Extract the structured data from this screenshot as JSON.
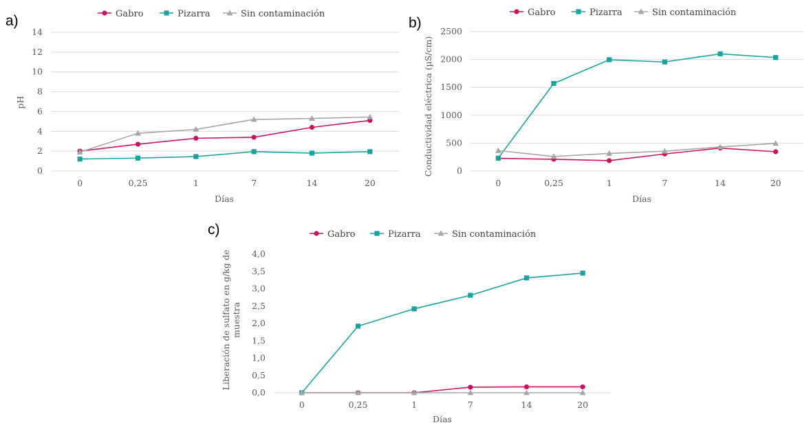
{
  "colors": {
    "gabro": "#C8125F",
    "pizarra": "#17A3A0",
    "sin": "#A6A6A6",
    "grid": "#D9D9D9",
    "text": "#595959"
  },
  "chart_data": [
    {
      "id": "a",
      "panel_label": "a)",
      "type": "line",
      "xlabel": "Días",
      "ylabel": "pH",
      "categories": [
        "0",
        "0,25",
        "1",
        "7",
        "14",
        "20"
      ],
      "ylim": [
        0,
        14
      ],
      "ystep": 2,
      "ydecimals": 0,
      "grid": true,
      "legend": "top",
      "series": [
        {
          "name": "Gabro",
          "key": "gabro",
          "marker": "circle",
          "values": [
            2.0,
            2.7,
            3.3,
            3.4,
            4.4,
            5.1
          ]
        },
        {
          "name": "Pizarra",
          "key": "pizarra",
          "marker": "square",
          "values": [
            1.2,
            1.3,
            1.45,
            1.95,
            1.8,
            1.95
          ]
        },
        {
          "name": "Sin contaminación",
          "key": "sin",
          "marker": "triangle",
          "values": [
            1.9,
            3.8,
            4.2,
            5.2,
            5.3,
            5.45
          ]
        }
      ]
    },
    {
      "id": "b",
      "panel_label": "b)",
      "type": "line",
      "xlabel": "Días",
      "ylabel": "Conductividad eléctrica (µS/cm)",
      "categories": [
        "0",
        "0,25",
        "1",
        "7",
        "14",
        "20"
      ],
      "ylim": [
        0,
        2500
      ],
      "ystep": 500,
      "ydecimals": 0,
      "grid": true,
      "legend": "top",
      "series": [
        {
          "name": "Gabro",
          "key": "gabro",
          "marker": "circle",
          "values": [
            225,
            210,
            185,
            305,
            410,
            345
          ]
        },
        {
          "name": "Pizarra",
          "key": "pizarra",
          "marker": "square",
          "values": [
            230,
            1570,
            1995,
            1955,
            2100,
            2035
          ]
        },
        {
          "name": "Sin contaminación",
          "key": "sin",
          "marker": "triangle",
          "values": [
            365,
            260,
            315,
            355,
            430,
            495
          ]
        }
      ]
    },
    {
      "id": "c",
      "panel_label": "c)",
      "type": "line",
      "xlabel": "Días",
      "ylabel_lines": [
        "Liberación de sulfato en g/kg de",
        "muestra"
      ],
      "categories": [
        "0",
        "0,25",
        "1",
        "7",
        "14",
        "20"
      ],
      "ylim": [
        0,
        4
      ],
      "ystep": 0.5,
      "ydecimals": 1,
      "decimal_comma": true,
      "grid": false,
      "legend": "top",
      "series": [
        {
          "name": "Gabro",
          "key": "gabro",
          "marker": "circle",
          "values": [
            0.0,
            0.0,
            0.0,
            0.16,
            0.17,
            0.17
          ]
        },
        {
          "name": "Pizarra",
          "key": "pizarra",
          "marker": "square",
          "values": [
            0.0,
            1.92,
            2.42,
            2.81,
            3.31,
            3.45
          ]
        },
        {
          "name": "Sin contaminación",
          "key": "sin",
          "marker": "triangle",
          "values": [
            0.0,
            0.0,
            0.0,
            0.0,
            0.0,
            0.0
          ]
        }
      ]
    }
  ]
}
